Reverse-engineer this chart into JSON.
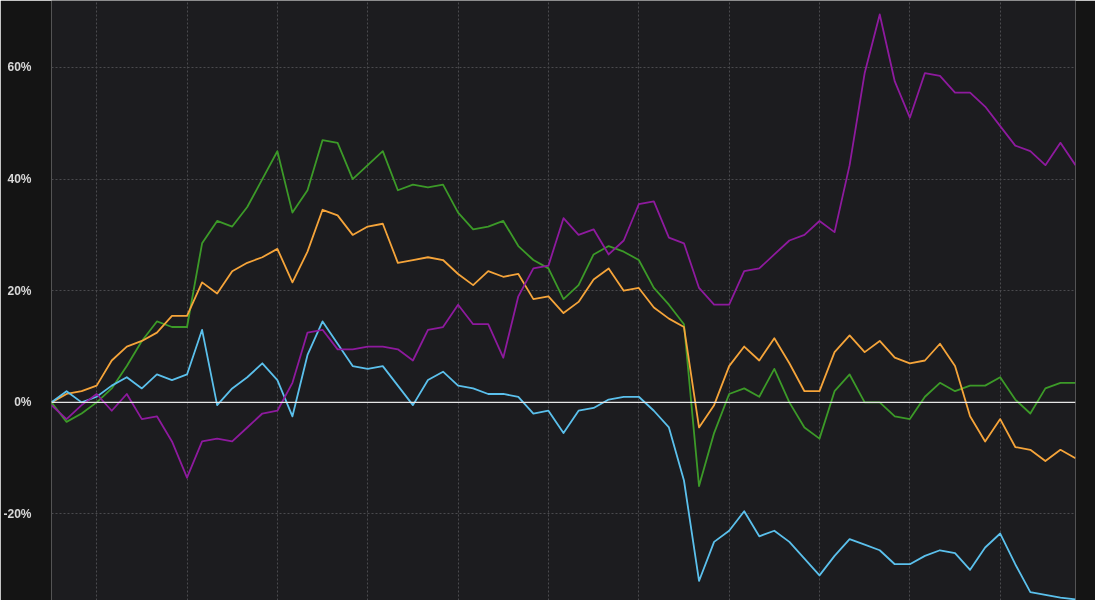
{
  "chart_data": {
    "type": "line",
    "categories": [
      null,
      null,
      null,
      null,
      null,
      null,
      null,
      null,
      null,
      null,
      null,
      null,
      null,
      null,
      null,
      null,
      null,
      null,
      null,
      null,
      null,
      null,
      null,
      null,
      null,
      null,
      null,
      null,
      null,
      null,
      null,
      null,
      null,
      null,
      null,
      null,
      null,
      null,
      null,
      null,
      null,
      null,
      null,
      null,
      null,
      null,
      null,
      null,
      null,
      null,
      null,
      null,
      null,
      null,
      null,
      null,
      null,
      null,
      null,
      null,
      null,
      null,
      null,
      null,
      null,
      null,
      null,
      null,
      null
    ],
    "series": [
      {
        "color": "#3c9a28",
        "values": [
          0,
          -3.5,
          -2,
          0,
          2.5,
          6.5,
          11,
          14.5,
          13.5,
          13.5,
          28.5,
          32.5,
          31.5,
          35,
          40,
          45,
          34,
          38,
          47,
          46.5,
          40,
          42.5,
          45,
          38,
          39,
          38.5,
          39,
          34,
          31,
          31.5,
          32.5,
          28,
          25.5,
          24,
          18.5,
          21,
          26.5,
          28,
          27,
          25.5,
          20.5,
          17.5,
          14,
          -15,
          -5.5,
          1.5,
          2.5,
          1,
          6,
          0,
          -4.5,
          -6.5,
          2,
          5,
          0,
          0,
          -2.5,
          -3,
          1,
          3.5,
          2,
          3,
          3,
          4.5,
          0.5,
          -2,
          2.5,
          3.5,
          3.5
        ]
      },
      {
        "color": "#f5a43a",
        "values": [
          0,
          1.5,
          2,
          3,
          7.5,
          10,
          11,
          12.5,
          15.5,
          15.5,
          21.5,
          19.5,
          23.5,
          25,
          26,
          27.5,
          21.5,
          27,
          34.5,
          33.5,
          30,
          31.5,
          32,
          25,
          25.5,
          26,
          25.5,
          23,
          21,
          23.5,
          22.5,
          23,
          18.5,
          19,
          16,
          18,
          22,
          24,
          20,
          20.5,
          17,
          15,
          13.5,
          -4.5,
          -0.5,
          6.5,
          10,
          7.5,
          11.5,
          7,
          2,
          2,
          9,
          12,
          9,
          11,
          8,
          7,
          7.5,
          10.5,
          6.5,
          -2.5,
          -7,
          -3,
          -8,
          -8.5,
          -10.5,
          -8.5,
          -10
        ]
      },
      {
        "color": "#5bc0ec",
        "values": [
          0,
          2,
          0,
          1,
          3,
          4.5,
          2.5,
          5,
          4,
          5,
          13,
          -0.5,
          2.5,
          4.5,
          7,
          4,
          -2.5,
          8.5,
          14.5,
          10.5,
          6.5,
          6,
          6.5,
          3,
          -0.5,
          4,
          5.5,
          3,
          2.5,
          1.5,
          1.5,
          1,
          -2,
          -1.5,
          -5.5,
          -1.5,
          -1,
          0.5,
          1,
          1,
          -1.5,
          -4.5,
          -14,
          -32,
          -25,
          -23,
          -19.5,
          -24,
          -23,
          -25,
          -28,
          -31,
          -27.5,
          -24.5,
          -25.5,
          -26.5,
          -29,
          -29,
          -27.5,
          -26.5,
          -27,
          -30,
          -26,
          -23.5,
          -29,
          -34,
          -34.5,
          -35,
          -35.3
        ]
      },
      {
        "color": "#8e1a9e",
        "values": [
          -0.5,
          -3,
          -0.5,
          1.5,
          -1.5,
          1.5,
          -3,
          -2.5,
          -7,
          -13.5,
          -7,
          -6.5,
          -7,
          -4.5,
          -2,
          -1.5,
          3.5,
          12.5,
          13,
          9.5,
          9.5,
          10,
          10,
          9.5,
          7.5,
          13,
          13.5,
          17.5,
          14,
          14,
          8,
          19,
          24,
          24.5,
          33,
          30,
          31,
          26.5,
          29,
          35.5,
          36,
          29.5,
          28.5,
          20.5,
          17.5,
          17.5,
          23.5,
          24,
          26.5,
          29,
          30,
          32.5,
          30.5,
          42.5,
          59,
          69.5,
          57.5,
          51,
          59,
          58.5,
          55.5,
          55.5,
          53,
          49.5,
          46,
          45,
          42.5,
          46.5,
          42.5
        ]
      }
    ],
    "ylim": [
      -35.5,
      72
    ],
    "yticks": [
      {
        "value": -20,
        "label": "-20%"
      },
      {
        "value": 0,
        "label": "0%"
      },
      {
        "value": 20,
        "label": "20%"
      },
      {
        "value": 40,
        "label": "40%"
      },
      {
        "value": 60,
        "label": "60%"
      }
    ],
    "ref_lines": [
      {
        "axis": "y",
        "value": 0,
        "color": "#e6e6e6"
      }
    ],
    "grid": true,
    "tick_labels": "y"
  }
}
